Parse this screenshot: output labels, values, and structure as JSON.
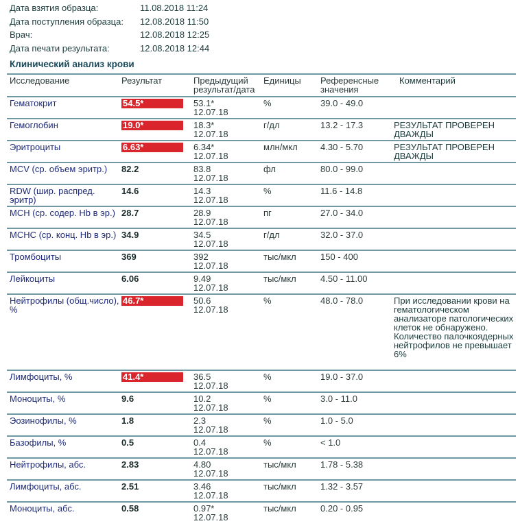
{
  "meta": [
    {
      "label": "Дата взятия образца:",
      "value": "11.08.2018 11:24"
    },
    {
      "label": "Дата поступления образца:",
      "value": "12.08.2018 11:50"
    },
    {
      "label": "Врач:",
      "value": "12.08.2018 12:25"
    },
    {
      "label": "Дата печати результата:",
      "value": "12.08.2018 12:44"
    }
  ],
  "title": "Клинический анализ крови",
  "colors": {
    "flag": "#d9252b",
    "rule": "#6f98a4",
    "test_name": "#1e2a7a"
  },
  "headers": {
    "name": "Исследование",
    "result": "Результат",
    "prev": "Предыдущий результат/дата",
    "unit": "Единицы",
    "ref": "Референсные значения",
    "comment": "Комментарий"
  },
  "rows": [
    {
      "name": "Гематокрит",
      "result": "54.5*",
      "flag": true,
      "prev": "53.1*",
      "prev_date": "12.07.18",
      "unit": "%",
      "ref": "39.0 - 49.0",
      "comment": ""
    },
    {
      "name": "Гемоглобин",
      "result": "19.0*",
      "flag": true,
      "prev": "18.3*",
      "prev_date": "12.07.18",
      "unit": "г/дл",
      "ref": "13.2 - 17.3",
      "comment": "РЕЗУЛЬТАТ ПРОВЕРЕН ДВАЖДЫ"
    },
    {
      "name": "Эритроциты",
      "result": "6.63*",
      "flag": true,
      "prev": "6.34*",
      "prev_date": "12.07.18",
      "unit": "млн/мкл",
      "ref": "4.30 - 5.70",
      "comment": "РЕЗУЛЬТАТ ПРОВЕРЕН ДВАЖДЫ"
    },
    {
      "name": "MCV (ср. объем эритр.)",
      "result": "82.2",
      "flag": false,
      "prev": "83.8",
      "prev_date": "12.07.18",
      "unit": "фл",
      "ref": "80.0 - 99.0",
      "comment": ""
    },
    {
      "name": "RDW (шир. распред. эритр)",
      "result": "14.6",
      "flag": false,
      "prev": "14.3",
      "prev_date": "12.07.18",
      "unit": "%",
      "ref": "11.6 - 14.8",
      "comment": ""
    },
    {
      "name": "MCH (ср. содер. Hb в эр.)",
      "result": "28.7",
      "flag": false,
      "prev": "28.9",
      "prev_date": "12.07.18",
      "unit": "пг",
      "ref": "27.0 - 34.0",
      "comment": ""
    },
    {
      "name": "MCHC (ср. конц. Hb в эр.)",
      "result": "34.9",
      "flag": false,
      "prev": "34.5",
      "prev_date": "12.07.18",
      "unit": "г/дл",
      "ref": "32.0 - 37.0",
      "comment": ""
    },
    {
      "name": "Тромбоциты",
      "result": "369",
      "flag": false,
      "prev": "392",
      "prev_date": "12.07.18",
      "unit": "тыс/мкл",
      "ref": "150 - 400",
      "comment": ""
    },
    {
      "name": "Лейкоциты",
      "result": "6.06",
      "flag": false,
      "prev": "9.49",
      "prev_date": "12.07.18",
      "unit": "тыс/мкл",
      "ref": "4.50 - 11.00",
      "comment": ""
    },
    {
      "name": "Нейтрофилы (общ.число), %",
      "result": "46.7*",
      "flag": true,
      "prev": "50.6",
      "prev_date": "12.07.18",
      "unit": "%",
      "ref": "48.0 - 78.0",
      "comment": "При исследовании крови на гематологическом анализаторе патологических клеток не обнаружено. Количество палочкоядерных нейтрофилов не превышает 6%",
      "tall": true
    },
    {
      "name": "Лимфоциты, %",
      "result": "41.4*",
      "flag": true,
      "prev": "36.5",
      "prev_date": "12.07.18",
      "unit": "%",
      "ref": "19.0 - 37.0",
      "comment": ""
    },
    {
      "name": "Моноциты, %",
      "result": "9.6",
      "flag": false,
      "prev": "10.2",
      "prev_date": "12.07.18",
      "unit": "%",
      "ref": "3.0 - 11.0",
      "comment": ""
    },
    {
      "name": "Эозинофилы, %",
      "result": "1.8",
      "flag": false,
      "prev": "2.3",
      "prev_date": "12.07.18",
      "unit": "%",
      "ref": "1.0 - 5.0",
      "comment": ""
    },
    {
      "name": "Базофилы, %",
      "result": "0.5",
      "flag": false,
      "prev": "0.4",
      "prev_date": "12.07.18",
      "unit": "%",
      "ref": "< 1.0",
      "comment": ""
    },
    {
      "name": "Нейтрофилы, абс.",
      "result": "2.83",
      "flag": false,
      "prev": "4.80",
      "prev_date": "12.07.18",
      "unit": "тыс/мкл",
      "ref": "1.78 - 5.38",
      "comment": ""
    },
    {
      "name": "Лимфоциты, абс.",
      "result": "2.51",
      "flag": false,
      "prev": "3.46",
      "prev_date": "12.07.18",
      "unit": "тыс/мкл",
      "ref": "1.32 - 3.57",
      "comment": ""
    },
    {
      "name": "Моноциты, абс.",
      "result": "0.58",
      "flag": false,
      "prev": "0.97*",
      "prev_date": "12.07.18",
      "unit": "тыс/мкл",
      "ref": "0.20 - 0.95",
      "comment": ""
    }
  ]
}
